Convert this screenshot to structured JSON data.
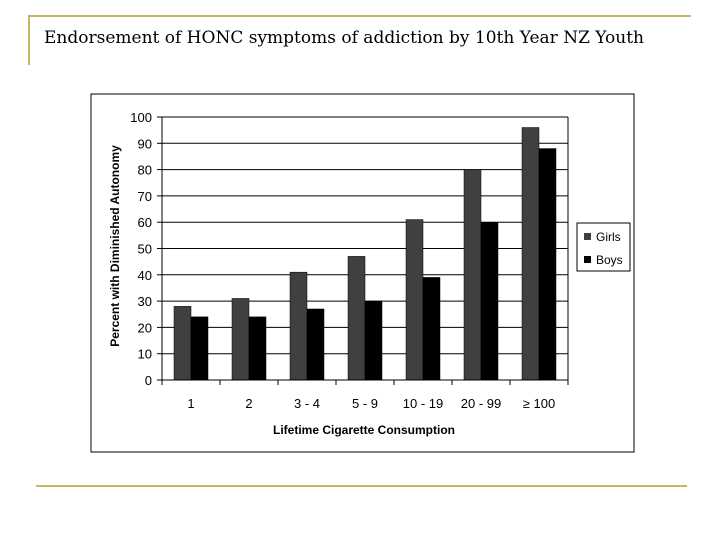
{
  "slide": {
    "title": "Endorsement of HONC symptoms of addiction by 10th Year NZ Youth"
  },
  "colors": {
    "accent_rule": "#c8b560",
    "girls": "#404040",
    "boys": "#000000",
    "plot_bg": "#ffffff",
    "gridline": "#000000"
  },
  "chart_data": {
    "type": "bar",
    "title": "",
    "xlabel": "Lifetime Cigarette Consumption",
    "ylabel": "Percent with Diminished Autonomy",
    "categories": [
      "1",
      "2",
      "3 - 4",
      "5 - 9",
      "10 - 19",
      "20 - 99",
      "≥ 100"
    ],
    "series": [
      {
        "name": "Girls",
        "values": [
          28,
          31,
          41,
          47,
          61,
          80,
          96
        ]
      },
      {
        "name": "Boys",
        "values": [
          24,
          24,
          27,
          30,
          39,
          60,
          88
        ]
      }
    ],
    "ylim": [
      0,
      100
    ],
    "yticks": [
      0,
      10,
      20,
      30,
      40,
      50,
      60,
      70,
      80,
      90,
      100
    ],
    "grid": true,
    "legend_position": "right"
  }
}
